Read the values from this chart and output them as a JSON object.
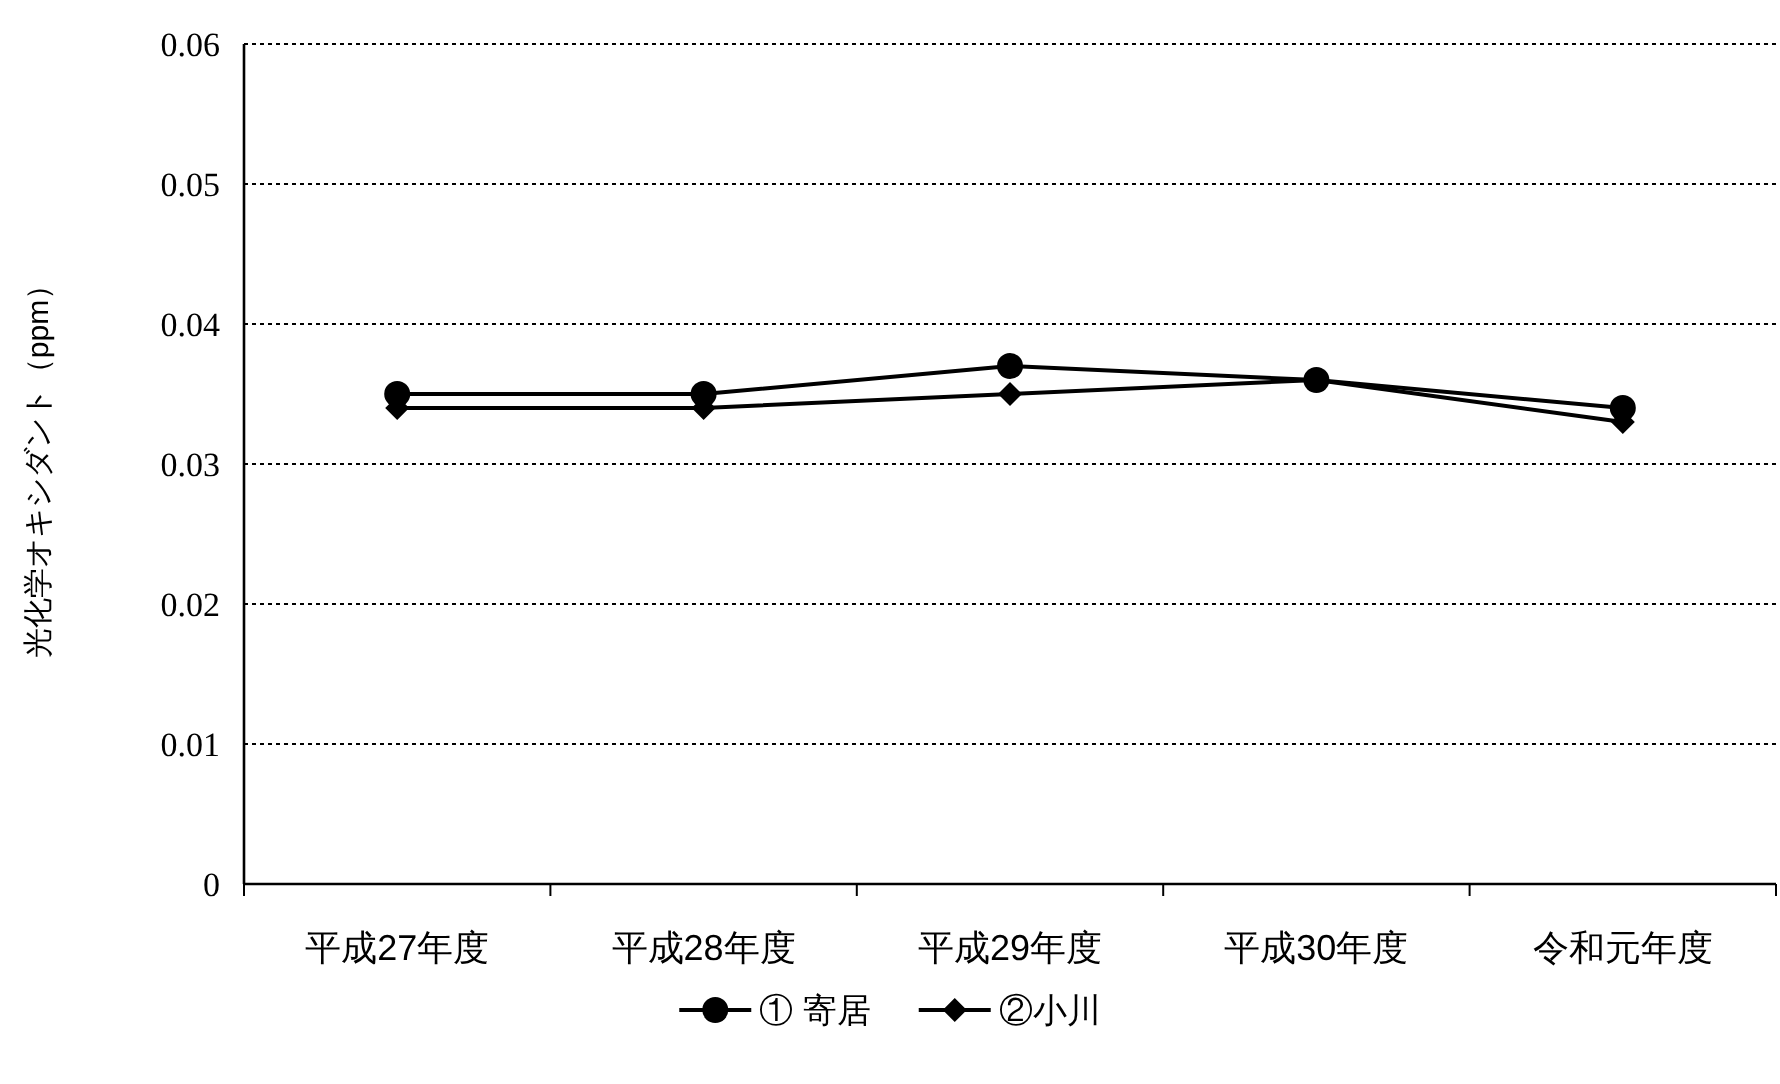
{
  "chart_data": {
    "type": "line",
    "ylabel": "光化学オキシダント（ppm）",
    "categories": [
      "平成27年度",
      "平成28年度",
      "平成29年度",
      "平成30年度",
      "令和元年度"
    ],
    "series": [
      {
        "name": "① 寄居",
        "color": "#000000",
        "marker": "circle",
        "values": [
          0.035,
          0.035,
          0.037,
          0.036,
          0.034
        ]
      },
      {
        "name": "②小川",
        "color": "#000000",
        "marker": "diamond",
        "values": [
          0.034,
          0.034,
          0.035,
          0.036,
          0.033
        ]
      }
    ],
    "ylim": [
      0,
      0.06
    ],
    "yticks": [
      0,
      0.01,
      0.02,
      0.03,
      0.04,
      0.05,
      0.06
    ],
    "grid": "y",
    "legend": "bottom",
    "line_style": "solid"
  }
}
